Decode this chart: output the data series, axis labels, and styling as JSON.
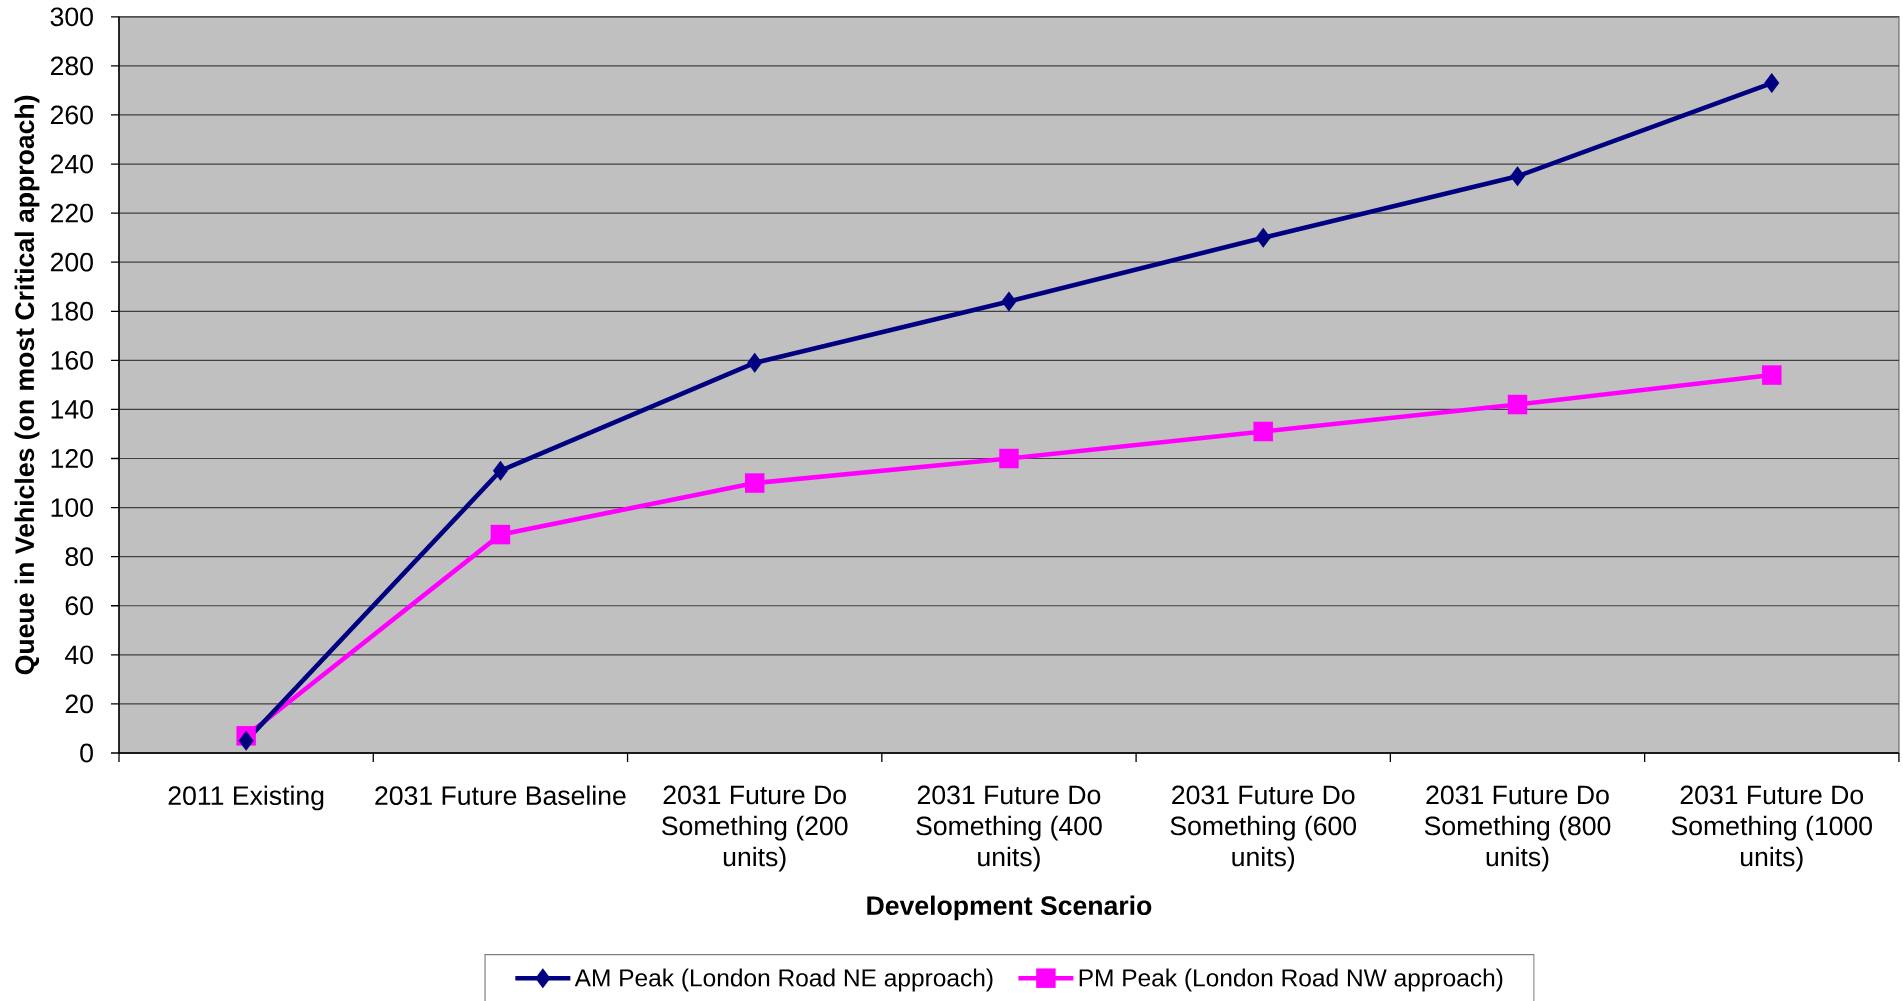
{
  "chart_data": {
    "type": "line",
    "xlabel": "Development Scenario",
    "ylabel": "Queue in Vehicles (on most Critical approach)",
    "categories": [
      "2011 Existing",
      "2031 Future Baseline",
      "2031 Future Do Something (200 units)",
      "2031 Future Do Something (400 units)",
      "2031 Future Do Something (600 units)",
      "2031 Future Do Something (800 units)",
      "2031 Future Do Something (1000 units)"
    ],
    "series": [
      {
        "name": "AM Peak (London Road NE approach)",
        "color": "#000080",
        "marker": "diamond",
        "values": [
          5,
          115,
          159,
          184,
          210,
          235,
          273
        ]
      },
      {
        "name": "PM Peak (London Road NW approach)",
        "color": "#ff00ff",
        "marker": "square",
        "values": [
          7,
          89,
          110,
          120,
          131,
          142,
          154
        ]
      }
    ],
    "ylim": [
      0,
      300
    ],
    "yticks": [
      0,
      20,
      40,
      60,
      80,
      100,
      120,
      140,
      160,
      180,
      200,
      220,
      240,
      260,
      280,
      300
    ],
    "grid": "y",
    "legend": "bottom",
    "line_style": "solid"
  }
}
